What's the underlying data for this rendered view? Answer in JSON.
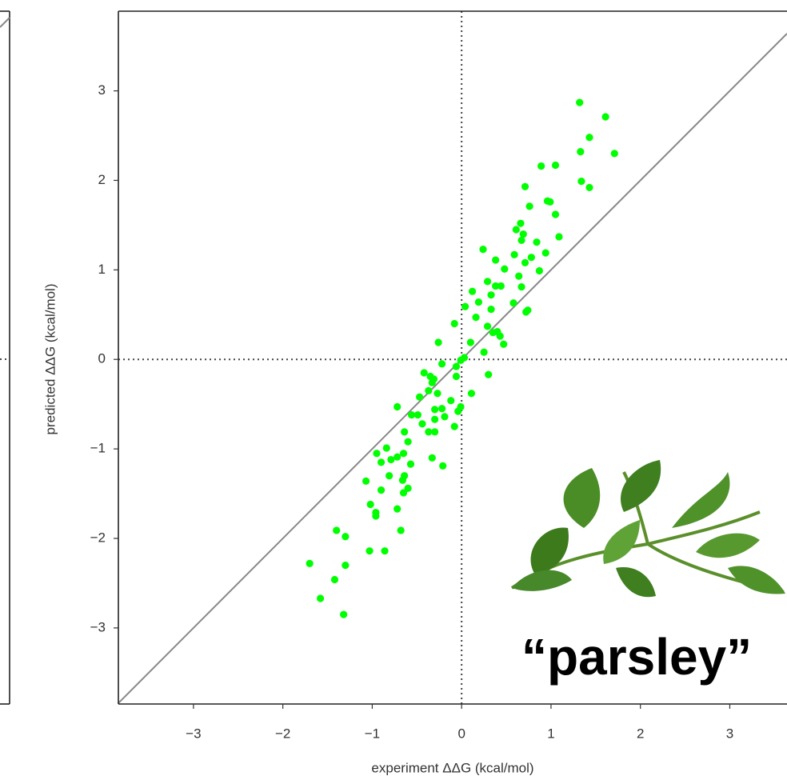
{
  "chart_data": {
    "type": "scatter",
    "x_label": "experiment ΔΔG (kcal/mol)",
    "y_label": "predicted ΔΔG (kcal/mol)",
    "annotation": "“parsley”",
    "color": "#00ff00",
    "xlim": [
      -3.84,
      3.64
    ],
    "ylim": [
      -3.85,
      3.89
    ],
    "xticks": [
      {
        "value": -3,
        "label": "−3"
      },
      {
        "value": -2,
        "label": "−2"
      },
      {
        "value": -1,
        "label": "−1"
      },
      0,
      1,
      2,
      3
    ],
    "yticks": [
      {
        "value": -3,
        "label": "−3"
      },
      {
        "value": -2,
        "label": "−2"
      },
      {
        "value": -1,
        "label": "−1"
      },
      0,
      1,
      2,
      3
    ],
    "x": [
      1.32,
      1.61,
      1.43,
      1.33,
      1.71,
      0.89,
      1.05,
      1.34,
      1.43,
      0.71,
      0.96,
      0.99,
      0.76,
      1.05,
      0.66,
      0.61,
      0.69,
      1.09,
      0.67,
      0.84,
      0.24,
      0.94,
      0.78,
      0.59,
      0.38,
      0.71,
      0.48,
      0.87,
      0.64,
      0.29,
      0.44,
      0.38,
      0.67,
      0.12,
      0.33,
      0.19,
      0.58,
      0.04,
      0.33,
      0.74,
      0.72,
      0.16,
      -0.08,
      0.29,
      0.4,
      0.35,
      0.43,
      0.1,
      -0.26,
      0.47,
      -0.01,
      0.03,
      0.25,
      -0.06,
      -0.22,
      0.3,
      -0.06,
      -0.42,
      -0.35,
      -0.31,
      -0.33,
      -0.37,
      0.11,
      -0.27,
      -0.12,
      -0.47,
      -0.01,
      -0.22,
      -0.72,
      -0.3,
      -0.04,
      -0.49,
      -0.19,
      -0.3,
      -0.56,
      -0.44,
      -0.08,
      -0.3,
      -0.37,
      -0.64,
      -0.6,
      -0.84,
      -0.65,
      -0.95,
      -0.72,
      -0.79,
      -0.33,
      -0.57,
      -0.9,
      -0.21,
      -0.64,
      -0.81,
      -0.66,
      -1.07,
      -0.6,
      -0.9,
      -0.65,
      -1.02,
      -0.72,
      -0.96,
      -0.96,
      -0.68,
      -1.4,
      -1.3,
      -1.03,
      -0.86,
      -1.7,
      -1.3,
      -1.42,
      -1.58,
      -1.32
    ],
    "values": [
      2.87,
      2.71,
      2.48,
      2.32,
      2.3,
      2.16,
      2.17,
      1.99,
      1.92,
      1.93,
      1.77,
      1.76,
      1.71,
      1.62,
      1.52,
      1.45,
      1.4,
      1.37,
      1.33,
      1.31,
      1.23,
      1.19,
      1.14,
      1.17,
      1.11,
      1.08,
      1.01,
      0.99,
      0.93,
      0.87,
      0.82,
      0.82,
      0.81,
      0.76,
      0.72,
      0.64,
      0.63,
      0.59,
      0.56,
      0.55,
      0.53,
      0.47,
      0.4,
      0.37,
      0.31,
      0.3,
      0.26,
      0.19,
      0.19,
      0.17,
      -0.01,
      0.02,
      0.08,
      -0.08,
      -0.05,
      -0.17,
      -0.19,
      -0.15,
      -0.19,
      -0.22,
      -0.26,
      -0.35,
      -0.38,
      -0.38,
      -0.46,
      -0.42,
      -0.53,
      -0.55,
      -0.53,
      -0.56,
      -0.58,
      -0.62,
      -0.64,
      -0.67,
      -0.62,
      -0.72,
      -0.75,
      -0.81,
      -0.81,
      -0.81,
      -0.92,
      -0.99,
      -1.05,
      -1.05,
      -1.09,
      -1.12,
      -1.1,
      -1.17,
      -1.15,
      -1.19,
      -1.3,
      -1.3,
      -1.35,
      -1.36,
      -1.44,
      -1.46,
      -1.49,
      -1.62,
      -1.67,
      -1.71,
      -1.75,
      -1.91,
      -1.91,
      -1.98,
      -2.14,
      -2.14,
      -2.28,
      -2.3,
      -2.46,
      -2.67,
      -2.85
    ]
  }
}
